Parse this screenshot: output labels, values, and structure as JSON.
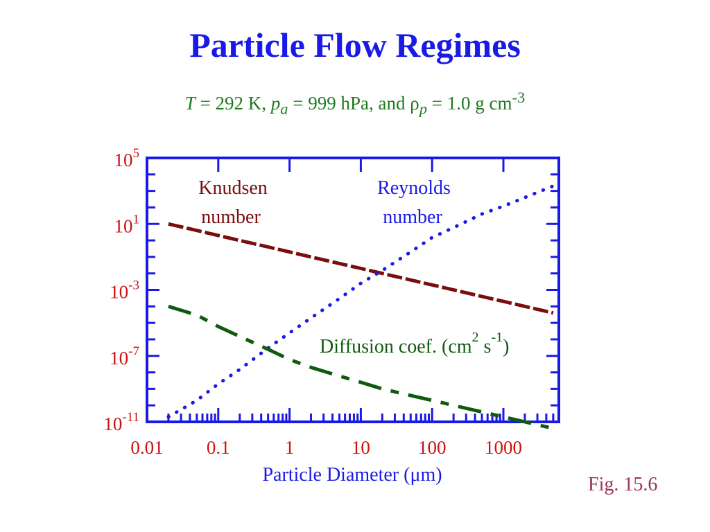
{
  "title": "Particle Flow Regimes",
  "subtitle": {
    "t_sym": "T",
    "t_text": " = 292 K, ",
    "p_sym": "p",
    "p_sub": "a",
    "p_text": " = 999 hPa, and ",
    "rho_sym": "ρ",
    "rho_sub": "p",
    "rho_text": " = 1.0 g cm",
    "rho_exp": "-3"
  },
  "fig_label": "Fig. 15.6",
  "colors": {
    "axis": "#1a1ae6",
    "tick_labels": "#cc1111",
    "knudsen": "#7a0d0d",
    "reynolds": "#1a1ae6",
    "diffusion": "#0f5a0f"
  },
  "chart_data": {
    "type": "line",
    "xlabel": "Particle Diameter (μm)",
    "x_scale": "log",
    "y_scale": "log",
    "xlim": [
      0.01,
      6000
    ],
    "ylim": [
      1e-11,
      100000.0
    ],
    "x_ticks": [
      {
        "value": 0.01,
        "label": "0.01"
      },
      {
        "value": 0.1,
        "label": "0.1"
      },
      {
        "value": 1,
        "label": "1"
      },
      {
        "value": 10,
        "label": "10"
      },
      {
        "value": 100,
        "label": "100"
      },
      {
        "value": 1000,
        "label": "1000"
      }
    ],
    "y_ticks": [
      {
        "value": 100000.0,
        "base": "10",
        "exp": "5"
      },
      {
        "value": 10.0,
        "base": "10",
        "exp": "1"
      },
      {
        "value": 0.001,
        "base": "10",
        "exp": "-3"
      },
      {
        "value": 1e-07,
        "base": "10",
        "exp": "-7"
      },
      {
        "value": 1e-11,
        "base": "10",
        "exp": "-11"
      }
    ],
    "series": [
      {
        "name": "Knudsen number",
        "label_lines": [
          "Knudsen",
          "number"
        ],
        "style": "dashed",
        "x": [
          0.02,
          0.05,
          0.1,
          0.2,
          0.5,
          1,
          2,
          5,
          10,
          20,
          50,
          100,
          200,
          500,
          1000,
          2000,
          5000
        ],
        "y": [
          10,
          4,
          2,
          1,
          0.4,
          0.2,
          0.1,
          0.04,
          0.02,
          0.01,
          0.004,
          0.002,
          0.001,
          0.0004,
          0.0002,
          0.0001,
          4e-05
        ]
      },
      {
        "name": "Reynolds number",
        "label_lines": [
          "Reynolds",
          "number"
        ],
        "style": "dotted",
        "x": [
          0.02,
          0.05,
          0.1,
          0.2,
          0.5,
          1,
          2,
          5,
          10,
          20,
          50,
          100,
          200,
          500,
          1000,
          2000,
          5000
        ],
        "y": [
          2e-11,
          2e-10,
          2e-09,
          1.5e-08,
          3e-07,
          2.5e-06,
          2e-05,
          0.0003,
          0.0025,
          0.015,
          0.2,
          1.5,
          6,
          40,
          120,
          400,
          2000
        ]
      },
      {
        "name": "Diffusion coef. (cm² s⁻¹)",
        "label_text": "Diffusion coef. (cm",
        "label_exp1": "2",
        "label_mid": " s",
        "label_exp2": "-1",
        "label_end": ")",
        "style": "dashdot",
        "x": [
          0.02,
          0.05,
          0.1,
          0.2,
          0.5,
          1,
          2,
          5,
          10,
          20,
          50,
          100,
          200,
          500,
          1000,
          2000,
          5000
        ],
        "y": [
          0.0001,
          3e-05,
          6e-06,
          1.5e-06,
          2.5e-07,
          6e-08,
          2e-08,
          6e-09,
          2.5e-09,
          1e-09,
          4e-10,
          2e-10,
          1e-10,
          4e-11,
          2e-11,
          1e-11,
          4e-12
        ]
      }
    ]
  }
}
